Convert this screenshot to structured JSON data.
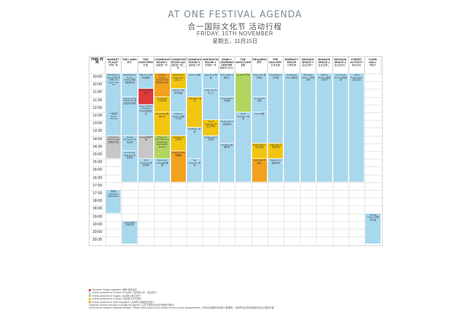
{
  "header": {
    "title_en": "AT ONE FESTIVAL AGENDA",
    "title_zh": "合一国际文化节 活动行程",
    "date_en": "FRIDAY, 15TH NOVEMBER",
    "date_zh": "星期五，11月15日"
  },
  "time_header": "TIME 时间",
  "times": [
    "10:00",
    "10:30",
    "11:00",
    "11:30",
    "12:00",
    "12:30",
    "13:00",
    "13:30",
    "14:00",
    "14:30",
    "15:00",
    "15:30",
    "16:00",
    "16:30",
    "17:00",
    "17:30",
    "18:00",
    "18:30",
    "19:00",
    "19:30",
    "20:00",
    "20:30"
  ],
  "venues": [
    {
      "en": "MARKET PLACE",
      "zh": "市场广场"
    },
    {
      "en": "THE LAWN",
      "zh": "草坪"
    },
    {
      "en": "THE AUDITORIUM",
      "zh": "礼堂"
    },
    {
      "en": "CONNEXION ROOM 1",
      "zh": "连接室一号"
    },
    {
      "en": "CONNEXION ROOM 1&2",
      "zh": "连接室一和二号"
    },
    {
      "en": "CONNEXION ROOM 3",
      "zh": "连接室三号"
    },
    {
      "en": "INSPIRATION ROOM 1",
      "zh": "灵感室一号"
    },
    {
      "en": "FAMILY LEARNING CENTRE",
      "zh": "家庭学习中心"
    },
    {
      "en": "THE SANCTUARY",
      "zh": "圣殿"
    },
    {
      "en": "FREQUENCY",
      "zh": "频率"
    },
    {
      "en": "THE GALLERY",
      "zh": "艺术长廊"
    },
    {
      "en": "SERENITY SPACE",
      "zh": "宁静空间"
    },
    {
      "en": "SESSION SPACE 1",
      "zh": "会议空间一"
    },
    {
      "en": "SESSION SPACE 2",
      "zh": "会议空间二"
    },
    {
      "en": "SESSION SPACE 3",
      "zh": "会议空间三"
    },
    {
      "en": "STREET ACTIVITY",
      "zh": "街头活动"
    },
    {
      "en": "TOWN HALL",
      "zh": "市政厅"
    }
  ],
  "blocks": [
    {
      "col": 0,
      "start": 0,
      "end": 7,
      "color": "blue",
      "text": "Breakfast Ci Market 早点与市场 Ivan Frigo/ Cafe Ida"
    },
    {
      "col": 0,
      "start": 5,
      "end": 8,
      "color": "blue",
      "text": "广场音乐 Music Carnival"
    },
    {
      "col": 0,
      "start": 8,
      "end": 11,
      "color": "grey",
      "text": "Closed for Rehearsal 彩排暂停开放"
    },
    {
      "col": 0,
      "start": 15,
      "end": 18,
      "color": "blue",
      "text": "开幕式 OPENING CEREMONY"
    },
    {
      "col": 1,
      "start": 0,
      "end": 3,
      "color": "blue",
      "text": "Breathwork & Energy Healing 呼吸与能量疗愈"
    },
    {
      "col": 1,
      "start": 3,
      "end": 8,
      "color": "blue",
      "text": "Family Sports & Wellness 家庭运动与健康"
    },
    {
      "col": 1,
      "start": 8,
      "end": 10,
      "color": "blue",
      "text": "Mindful Movement 正念运动"
    },
    {
      "col": 1,
      "start": 10,
      "end": 14,
      "color": "blue",
      "text": "Community Gathering 社区聚会"
    },
    {
      "col": 1,
      "start": 19,
      "end": 22,
      "color": "blue",
      "text": "Sound Bath 声音疗愈"
    },
    {
      "col": 2,
      "start": 0,
      "end": 2,
      "color": "blue",
      "text": "Welcome Talk 欢迎致辞"
    },
    {
      "col": 2,
      "start": 2,
      "end": 4,
      "color": "red",
      "text": "Keynote 主题演讲"
    },
    {
      "col": 2,
      "start": 4,
      "end": 8,
      "color": "blue",
      "text": "Panel: Culture & Wellbeing 文化与健康论坛"
    },
    {
      "col": 2,
      "start": 8,
      "end": 11,
      "color": "grey",
      "text": "Closed 暂停开放"
    },
    {
      "col": 2,
      "start": 11,
      "end": 14,
      "color": "blue",
      "text": "Film Screening 电影放映"
    },
    {
      "col": 3,
      "start": 0,
      "end": 3,
      "color": "orange",
      "text": "Creative Writing Workshop 创意写作工作坊"
    },
    {
      "col": 3,
      "start": 3,
      "end": 5,
      "color": "yellow",
      "text": "Art Therapy 艺术疗愈"
    },
    {
      "col": 3,
      "start": 5,
      "end": 8,
      "color": "yellow",
      "text": "Storytelling 故事分享"
    },
    {
      "col": 3,
      "start": 8,
      "end": 11,
      "color": "green",
      "text": "Work your Self: Women's Sustainable and Healthy Periods"
    },
    {
      "col": 3,
      "start": 11,
      "end": 14,
      "color": "blue",
      "text": "Movement Class 运动课程"
    },
    {
      "col": 4,
      "start": 0,
      "end": 2,
      "color": "yellow",
      "text": "Mindfulness for Beginners 正念入门"
    },
    {
      "col": 4,
      "start": 2,
      "end": 5,
      "color": "blue",
      "text": "Nutrition Talk 营养讲座"
    },
    {
      "col": 4,
      "start": 5,
      "end": 8,
      "color": "blue",
      "text": "Dance & Rhythm 舞蹈与节奏"
    },
    {
      "col": 4,
      "start": 8,
      "end": 10,
      "color": "yellow",
      "text": "Journaling 日记写作"
    },
    {
      "col": 4,
      "start": 10,
      "end": 14,
      "color": "orange",
      "text": "Singing Circle 歌唱圈"
    },
    {
      "col": 5,
      "start": 0,
      "end": 3,
      "color": "blue",
      "text": "Tai Chi 太极"
    },
    {
      "col": 5,
      "start": 3,
      "end": 7,
      "color": "yellow",
      "text": "Calligraphy 书法"
    },
    {
      "col": 5,
      "start": 7,
      "end": 11,
      "color": "blue",
      "text": "Meditation 冥想"
    },
    {
      "col": 5,
      "start": 11,
      "end": 14,
      "color": "blue",
      "text": "Tea Ceremony 茶道"
    },
    {
      "col": 6,
      "start": 0,
      "end": 2,
      "color": "blue",
      "text": "Yoga Flow 瑜伽"
    },
    {
      "col": 6,
      "start": 2,
      "end": 6,
      "color": "blue",
      "text": "Reiki Intro 灵气入门"
    },
    {
      "col": 6,
      "start": 6,
      "end": 8,
      "color": "yellow",
      "text": "Sound Workshop 声音工作坊"
    },
    {
      "col": 6,
      "start": 8,
      "end": 14,
      "color": "blue",
      "text": "Healing Circle 疗愈圈"
    },
    {
      "col": 7,
      "start": 0,
      "end": 3,
      "color": "blue",
      "text": "Kids Crafts 儿童手工"
    },
    {
      "col": 7,
      "start": 3,
      "end": 6,
      "color": "blue",
      "text": "Puppet Show 木偶剧"
    },
    {
      "col": 7,
      "start": 6,
      "end": 9,
      "color": "blue",
      "text": "Family Games 家庭游戏"
    },
    {
      "col": 7,
      "start": 9,
      "end": 14,
      "color": "blue",
      "text": "Storytime 故事时间"
    },
    {
      "col": 8,
      "start": 0,
      "end": 5,
      "color": "green",
      "text": "Qi Gong 气功"
    },
    {
      "col": 8,
      "start": 5,
      "end": 14,
      "color": "blue",
      "text": "Quiet Reflection 静思"
    },
    {
      "col": 9,
      "start": 0,
      "end": 3,
      "color": "blue",
      "text": "Music Jam 音乐即兴"
    },
    {
      "col": 9,
      "start": 3,
      "end": 5,
      "color": "blue",
      "text": "Drum Circle 鼓圈"
    },
    {
      "col": 9,
      "start": 5,
      "end": 9,
      "color": "blue",
      "text": "Choir 合唱"
    },
    {
      "col": 9,
      "start": 9,
      "end": 11,
      "color": "yellow",
      "text": "Band Session 乐队演出"
    },
    {
      "col": 9,
      "start": 11,
      "end": 14,
      "color": "orange",
      "text": "Open Mic 开放麦"
    },
    {
      "col": 10,
      "start": 0,
      "end": 9,
      "color": "blue",
      "text": "Art Exhibition 艺术展"
    },
    {
      "col": 10,
      "start": 9,
      "end": 11,
      "color": "yellow",
      "text": "Artist Talk 艺术家对谈"
    },
    {
      "col": 10,
      "start": 11,
      "end": 14,
      "color": "blue",
      "text": "Gallery Tour 画廊导览"
    },
    {
      "col": 11,
      "start": 0,
      "end": 14,
      "color": "blue",
      "text": "Relaxation Zone 放松区"
    },
    {
      "col": 12,
      "start": 0,
      "end": 14,
      "color": "blue",
      "text": "Workshop Series 工作坊系列"
    },
    {
      "col": 13,
      "start": 0,
      "end": 14,
      "color": "blue",
      "text": "Talks & Sharing 讲座与分享"
    },
    {
      "col": 14,
      "start": 0,
      "end": 14,
      "color": "blue",
      "text": "Community Stories 社区故事"
    },
    {
      "col": 15,
      "start": 0,
      "end": 14,
      "color": "blue",
      "text": "Street Performance 街头表演"
    },
    {
      "col": 16,
      "start": 18,
      "end": 22,
      "color": "blue",
      "text": "Closing Concert 闭幕音乐会"
    }
  ],
  "legend": [
    {
      "color": "red",
      "text": "Separate charges applicable | 额外收费活动"
    },
    {
      "color": "blue",
      "text": "Events presented in Chinese & English | 活动将以中、英文进行"
    },
    {
      "color": "green",
      "text": "Events presented in English | 活动将以英文进行"
    },
    {
      "color": "yellow",
      "text": "Events presented in Chinese | 活动将以中文进行"
    },
    {
      "color": "orange",
      "text": "Events presented in other languages | 活动将以其他语言进行"
    }
  ],
  "notes": [
    "Organiser reserves the right to change the agenda | 主办方有权对活动行程进行更改",
    "All events are subject to capacity limitation. Please arrive early for your chosen events to avoid disappointment. | 所有活动都将有容纳人数限制，请提早到达您所选择的活动以避免失望"
  ]
}
